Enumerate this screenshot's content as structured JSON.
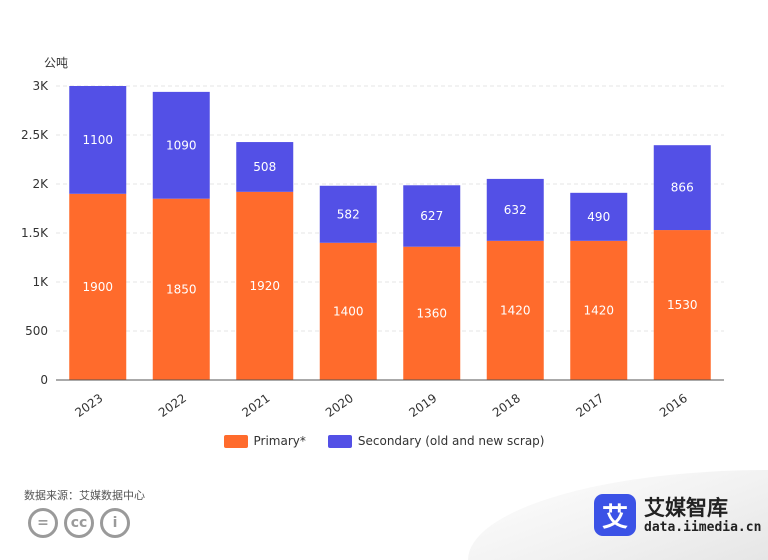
{
  "chart_data": {
    "type": "bar",
    "stacked": true,
    "unit_label": "公吨",
    "categories": [
      "2023",
      "2022",
      "2021",
      "2020",
      "2019",
      "2018",
      "2017",
      "2016"
    ],
    "series": [
      {
        "name": "Primary*",
        "color": "#ff6b2c",
        "values": [
          1900,
          1850,
          1920,
          1400,
          1360,
          1420,
          1420,
          1530
        ]
      },
      {
        "name": "Secondary (old and new scrap)",
        "color": "#5350e6",
        "values": [
          1100,
          1090,
          508,
          582,
          627,
          632,
          490,
          866
        ]
      }
    ],
    "ylim": [
      0,
      3000
    ],
    "y_ticks": [
      0,
      500,
      1000,
      1500,
      2000,
      2500,
      3000
    ],
    "y_tick_labels": [
      "0",
      "500",
      "1K",
      "1.5K",
      "2K",
      "2.5K",
      "3K"
    ],
    "grid": true,
    "legend_position": "bottom"
  },
  "footer": {
    "source": "数据来源：艾媒数据中心",
    "license_icons": [
      "equals-icon",
      "cc-icon",
      "person-icon"
    ],
    "license_glyphs": [
      "=",
      "cc",
      "i"
    ]
  },
  "brand": {
    "logo_glyph": "艾",
    "name": "艾媒智库",
    "url": "data.iimedia.cn",
    "color": "#3b52e6"
  }
}
